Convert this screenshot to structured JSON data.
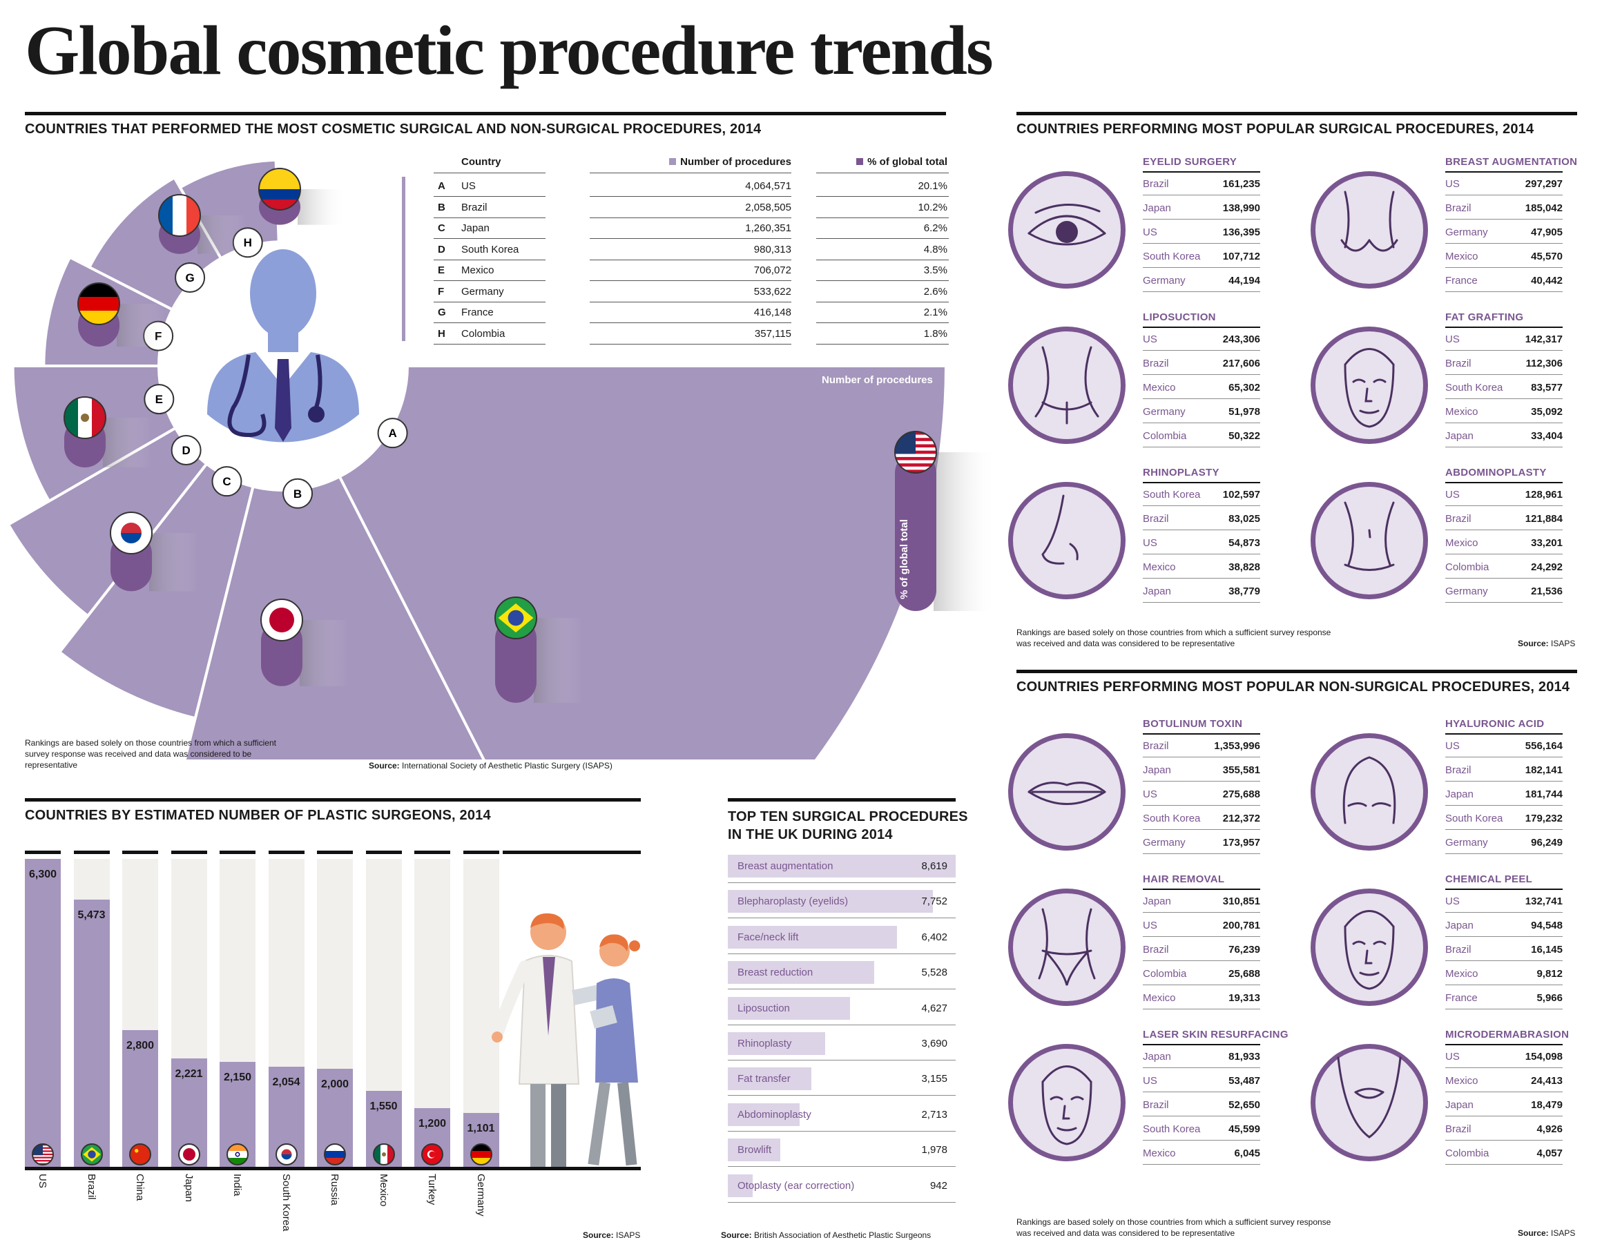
{
  "title": "Global cosmetic procedure trends",
  "colors": {
    "purple": "#a596bd",
    "dark_purple": "#7a5690",
    "light_purple": "#dcd3e6",
    "light_grey": "#f1f0ed"
  },
  "countries_section": {
    "heading": "COUNTRIES THAT PERFORMED THE MOST COSMETIC SURGICAL AND NON-SURGICAL PROCEDURES, 2014",
    "col_country": "Country",
    "col_number": "Number of procedures",
    "col_pct": "% of global total",
    "rows": [
      {
        "letter": "A",
        "country": "US",
        "number": "4,064,571",
        "pct": "20.1%"
      },
      {
        "letter": "B",
        "country": "Brazil",
        "number": "2,058,505",
        "pct": "10.2%"
      },
      {
        "letter": "C",
        "country": "Japan",
        "number": "1,260,351",
        "pct": "6.2%"
      },
      {
        "letter": "D",
        "country": "South Korea",
        "number": "980,313",
        "pct": "4.8%"
      },
      {
        "letter": "E",
        "country": "Mexico",
        "number": "706,072",
        "pct": "3.5%"
      },
      {
        "letter": "F",
        "country": "Germany",
        "number": "533,622",
        "pct": "2.6%"
      },
      {
        "letter": "G",
        "country": "France",
        "number": "416,148",
        "pct": "2.1%"
      },
      {
        "letter": "H",
        "country": "Colombia",
        "number": "357,115",
        "pct": "1.8%"
      }
    ],
    "wedge_label": "Number of procedures",
    "bar_label": "% of global total",
    "note": "Rankings are based solely on those countries from which a sufficient survey response was received and data was considered to be representative",
    "source_label": "Source:",
    "source_text": "International Society of Aesthetic Plastic Surgery (ISAPS)"
  },
  "surgical_section": {
    "heading": "COUNTRIES PERFORMING MOST POPULAR SURGICAL PROCEDURES, 2014",
    "procedures": [
      {
        "name": "EYELID SURGERY",
        "icon": "eye-icon",
        "rows": [
          [
            "Brazil",
            "161,235"
          ],
          [
            "Japan",
            "138,990"
          ],
          [
            "US",
            "136,395"
          ],
          [
            "South Korea",
            "107,712"
          ],
          [
            "Germany",
            "44,194"
          ]
        ]
      },
      {
        "name": "BREAST AUGMENTATION",
        "icon": "breast-icon",
        "rows": [
          [
            "US",
            "297,297"
          ],
          [
            "Brazil",
            "185,042"
          ],
          [
            "Germany",
            "47,905"
          ],
          [
            "Mexico",
            "45,570"
          ],
          [
            "France",
            "40,442"
          ]
        ]
      },
      {
        "name": "LIPOSUCTION",
        "icon": "hips-icon",
        "rows": [
          [
            "US",
            "243,306"
          ],
          [
            "Brazil",
            "217,606"
          ],
          [
            "Mexico",
            "65,302"
          ],
          [
            "Germany",
            "51,978"
          ],
          [
            "Colombia",
            "50,322"
          ]
        ]
      },
      {
        "name": "FAT GRAFTING",
        "icon": "face-icon",
        "rows": [
          [
            "US",
            "142,317"
          ],
          [
            "Brazil",
            "112,306"
          ],
          [
            "South Korea",
            "83,577"
          ],
          [
            "Mexico",
            "35,092"
          ],
          [
            "Japan",
            "33,404"
          ]
        ]
      },
      {
        "name": "RHINOPLASTY",
        "icon": "nose-icon",
        "rows": [
          [
            "South Korea",
            "102,597"
          ],
          [
            "Brazil",
            "83,025"
          ],
          [
            "US",
            "54,873"
          ],
          [
            "Mexico",
            "38,828"
          ],
          [
            "Japan",
            "38,779"
          ]
        ]
      },
      {
        "name": "ABDOMINOPLASTY",
        "icon": "abdomen-icon",
        "rows": [
          [
            "US",
            "128,961"
          ],
          [
            "Brazil",
            "121,884"
          ],
          [
            "Mexico",
            "33,201"
          ],
          [
            "Colombia",
            "24,292"
          ],
          [
            "Germany",
            "21,536"
          ]
        ]
      }
    ],
    "note": "Rankings are based solely on those countries from which a sufficient survey response was received and data was considered to be representative",
    "source_label": "Source:",
    "source_text": "ISAPS"
  },
  "nonsurgical_section": {
    "heading": "COUNTRIES PERFORMING MOST POPULAR NON-SURGICAL PROCEDURES, 2014",
    "procedures": [
      {
        "name": "BOTULINUM TOXIN",
        "icon": "lips-icon",
        "rows": [
          [
            "Brazil",
            "1,353,996"
          ],
          [
            "Japan",
            "355,581"
          ],
          [
            "US",
            "275,688"
          ],
          [
            "South Korea",
            "212,372"
          ],
          [
            "Germany",
            "173,957"
          ]
        ]
      },
      {
        "name": "HYALURONIC ACID",
        "icon": "forehead-icon",
        "rows": [
          [
            "US",
            "556,164"
          ],
          [
            "Brazil",
            "182,141"
          ],
          [
            "Japan",
            "181,744"
          ],
          [
            "South Korea",
            "179,232"
          ],
          [
            "Germany",
            "96,249"
          ]
        ]
      },
      {
        "name": "HAIR REMOVAL",
        "icon": "bikini-icon",
        "rows": [
          [
            "Japan",
            "310,851"
          ],
          [
            "US",
            "200,781"
          ],
          [
            "Brazil",
            "76,239"
          ],
          [
            "Colombia",
            "25,688"
          ],
          [
            "Mexico",
            "19,313"
          ]
        ]
      },
      {
        "name": "CHEMICAL PEEL",
        "icon": "face-outline-icon",
        "rows": [
          [
            "US",
            "132,741"
          ],
          [
            "Japan",
            "94,548"
          ],
          [
            "Brazil",
            "16,145"
          ],
          [
            "Mexico",
            "9,812"
          ],
          [
            "France",
            "5,966"
          ]
        ]
      },
      {
        "name": "LASER SKIN RESURFACING",
        "icon": "woman-face-icon",
        "rows": [
          [
            "Japan",
            "81,933"
          ],
          [
            "US",
            "53,487"
          ],
          [
            "Brazil",
            "52,650"
          ],
          [
            "South Korea",
            "45,599"
          ],
          [
            "Mexico",
            "6,045"
          ]
        ]
      },
      {
        "name": "MICRODERMABRASION",
        "icon": "chin-icon",
        "rows": [
          [
            "US",
            "154,098"
          ],
          [
            "Mexico",
            "24,413"
          ],
          [
            "Japan",
            "18,479"
          ],
          [
            "Brazil",
            "4,926"
          ],
          [
            "Colombia",
            "4,057"
          ]
        ]
      }
    ],
    "note": "Rankings are based solely on those countries from which a sufficient survey response was received and data was considered to be representative",
    "source_label": "Source:",
    "source_text": "ISAPS"
  },
  "uk_section": {
    "heading_line1": "TOP TEN SURGICAL PROCEDURES",
    "heading_line2": "IN THE UK DURING 2014",
    "source_label": "Source:",
    "source_text": "British Association of Aesthetic Plastic Surgeons"
  },
  "surgeons_section": {
    "heading": "COUNTRIES BY ESTIMATED NUMBER OF PLASTIC SURGEONS, 2014",
    "source_label": "Source:",
    "source_text": "ISAPS"
  },
  "chart_data": [
    {
      "type": "bar",
      "title": "COUNTRIES THAT PERFORMED THE MOST COSMETIC SURGICAL AND NON-SURGICAL PROCEDURES, 2014",
      "categories": [
        "US",
        "Brazil",
        "Japan",
        "South Korea",
        "Mexico",
        "Germany",
        "France",
        "Colombia"
      ],
      "series": [
        {
          "name": "Number of procedures",
          "values": [
            4064571,
            2058505,
            1260351,
            980313,
            706072,
            533622,
            416148,
            357115
          ]
        },
        {
          "name": "% of global total",
          "values": [
            20.1,
            10.2,
            6.2,
            4.8,
            3.5,
            2.6,
            2.1,
            1.8
          ]
        }
      ]
    },
    {
      "type": "bar",
      "title": "COUNTRIES BY ESTIMATED NUMBER OF PLASTIC SURGEONS, 2014",
      "categories": [
        "US",
        "Brazil",
        "China",
        "Japan",
        "India",
        "South Korea",
        "Russia",
        "Mexico",
        "Turkey",
        "Germany"
      ],
      "values": [
        6300,
        5473,
        2800,
        2221,
        2150,
        2054,
        2000,
        1550,
        1200,
        1101
      ],
      "labels": [
        "6,300",
        "5,473",
        "2,800",
        "2,221",
        "2,150",
        "2,054",
        "2,000",
        "1,550",
        "1,200",
        "1,101"
      ],
      "ylim": [
        0,
        6300
      ]
    },
    {
      "type": "bar",
      "title": "TOP TEN SURGICAL PROCEDURES IN THE UK DURING 2014",
      "categories": [
        "Breast augmentation",
        "Blepharoplasty (eyelids)",
        "Face/neck lift",
        "Breast reduction",
        "Liposuction",
        "Rhinoplasty",
        "Fat transfer",
        "Abdominoplasty",
        "Browlift",
        "Otoplasty (ear correction)"
      ],
      "values": [
        8619,
        7752,
        6402,
        5528,
        4627,
        3690,
        3155,
        2713,
        1978,
        942
      ],
      "labels": [
        "8,619",
        "7,752",
        "6,402",
        "5,528",
        "4,627",
        "3,690",
        "3,155",
        "2,713",
        "1,978",
        "942"
      ]
    }
  ]
}
